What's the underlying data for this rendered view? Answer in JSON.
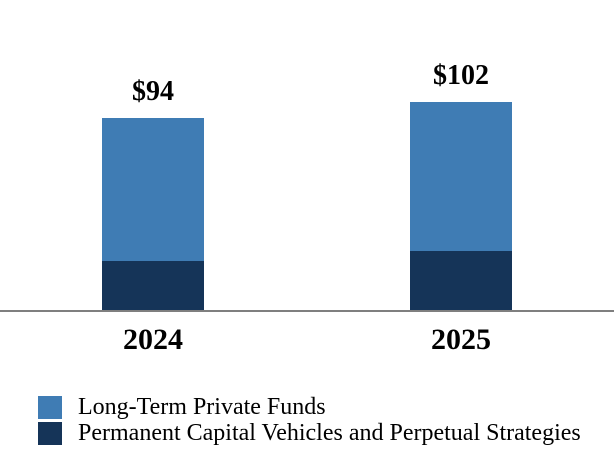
{
  "chart_data": {
    "type": "bar",
    "stacked": true,
    "categories": [
      "2024",
      "2025"
    ],
    "series": [
      {
        "name": "Long-Term Private Funds",
        "color": "#3F7CB4",
        "values": [
          70,
          73
        ]
      },
      {
        "name": "Permanent Capital Vehicles and Perpetual Strategies",
        "color": "#153458",
        "values": [
          24,
          29
        ]
      }
    ],
    "totals": [
      94,
      102
    ],
    "total_labels": [
      "$94",
      "$102"
    ],
    "title": "",
    "xlabel": "",
    "ylabel": "",
    "ylim": [
      0,
      110
    ],
    "grid": false,
    "legend_position": "bottom-left",
    "axis_line_color": "#7F7F7F",
    "background_color": "#FFFFFF",
    "label_color": "#000000"
  }
}
